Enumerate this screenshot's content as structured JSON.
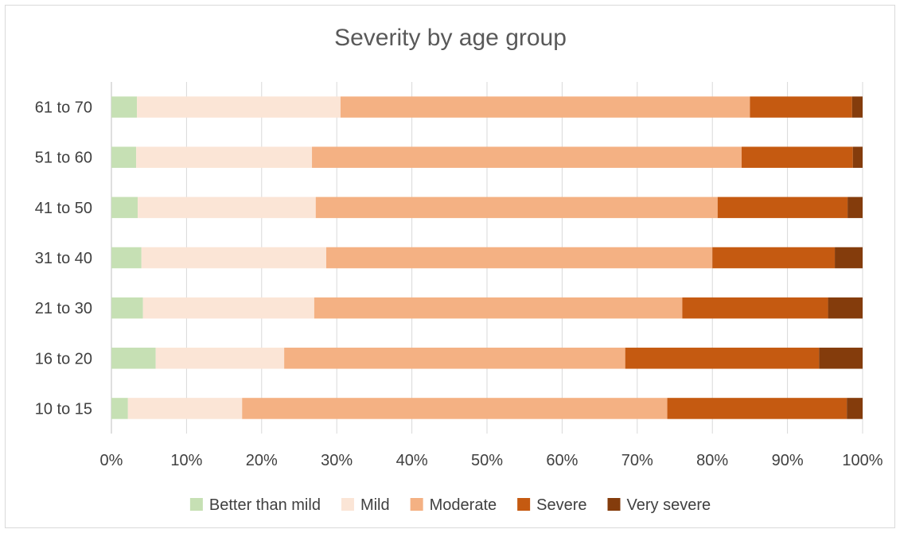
{
  "chart_data": {
    "type": "bar",
    "orientation": "horizontal",
    "stacked": "percent",
    "title": "Severity by age group",
    "xlabel": "",
    "ylabel": "",
    "xlim": [
      0,
      100
    ],
    "x_ticks": [
      "0%",
      "10%",
      "20%",
      "30%",
      "40%",
      "50%",
      "60%",
      "70%",
      "80%",
      "90%",
      "100%"
    ],
    "grid": "vertical",
    "legend_position": "bottom",
    "categories": [
      "10 to 15",
      "16 to 20",
      "21 to 30",
      "31 to 40",
      "41 to 50",
      "51 to 60",
      "61 to 70"
    ],
    "series": [
      {
        "name": "Better than mild",
        "color": "#c6e0b4",
        "values": [
          2.2,
          5.9,
          4.2,
          4.0,
          3.5,
          3.3,
          3.4
        ]
      },
      {
        "name": "Mild",
        "color": "#fbe5d6",
        "values": [
          15.2,
          17.1,
          22.8,
          24.6,
          23.7,
          23.4,
          27.1
        ]
      },
      {
        "name": "Moderate",
        "color": "#f4b183",
        "values": [
          56.6,
          45.4,
          49.0,
          51.4,
          53.5,
          57.2,
          54.5
        ]
      },
      {
        "name": "Severe",
        "color": "#c55a11",
        "values": [
          23.9,
          25.8,
          19.4,
          16.3,
          17.3,
          14.8,
          13.6
        ]
      },
      {
        "name": "Very severe",
        "color": "#843c0c",
        "values": [
          2.1,
          5.8,
          4.6,
          3.7,
          2.0,
          1.3,
          1.4
        ]
      }
    ]
  }
}
